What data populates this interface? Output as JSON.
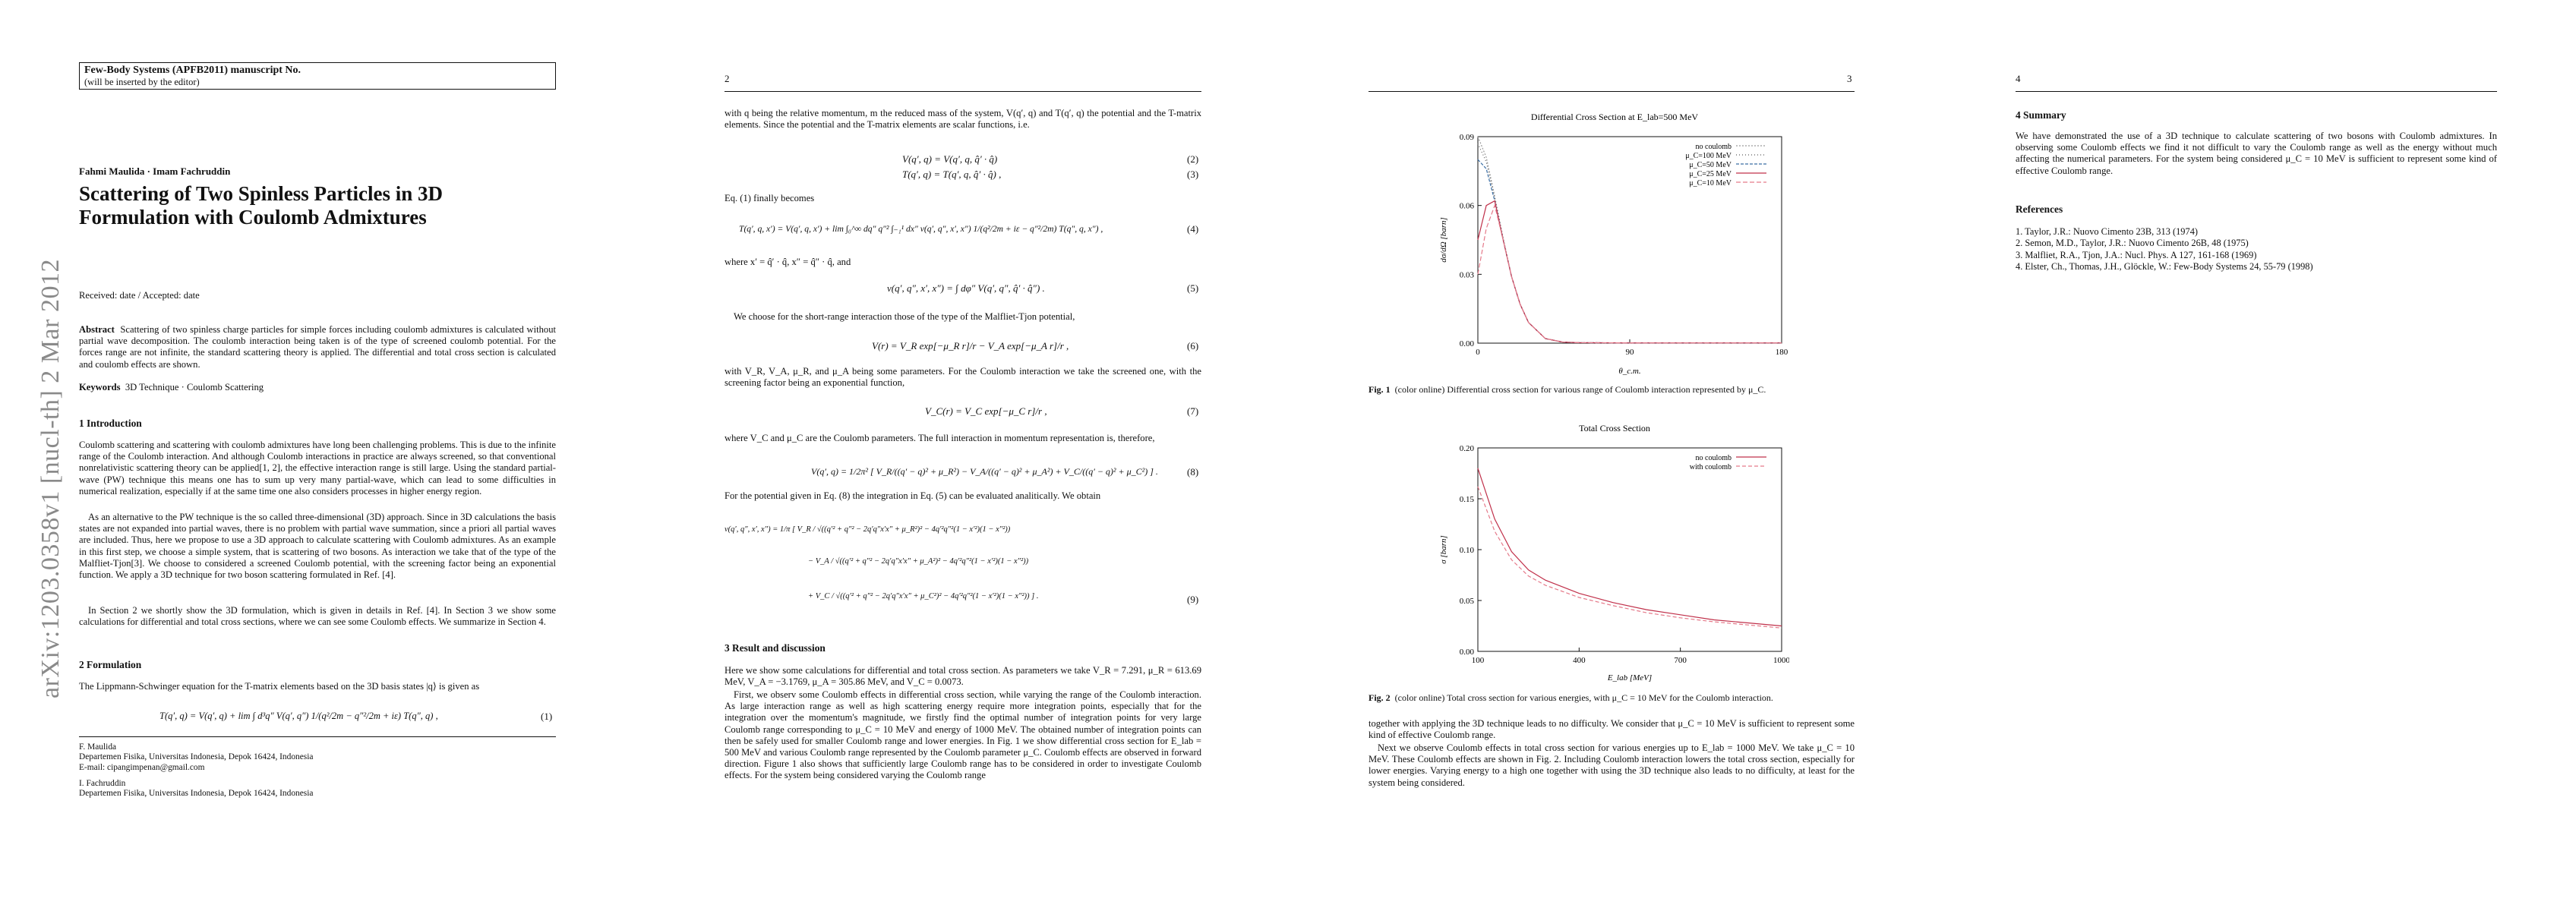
{
  "arxiv_stamp": "arXiv:1203.0358v1  [nucl-th]  2 Mar 2012",
  "page1": {
    "journal_line1": "Few-Body Systems (APFB2011) manuscript No.",
    "journal_line2": "(will be inserted by the editor)",
    "authors": "Fahmi Maulida · Imam Fachruddin",
    "title": "Scattering of Two Spinless Particles in 3D Formulation with Coulomb Admixtures",
    "received": "Received: date / Accepted: date",
    "abstract_label": "Abstract",
    "abstract": "Scattering of two spinless charge particles for simple forces including coulomb admixtures is calculated without partial wave decomposition. The coulomb interaction being taken is of the type of screened coulomb potential. For the forces range are not infinite, the standard scattering theory is applied. The differential and total cross section is calculated and coulomb effects are shown.",
    "keywords_label": "Keywords",
    "keywords": "3D Technique · Coulomb Scattering",
    "sec1_title": "1 Introduction",
    "sec1_p1": "Coulomb scattering and scattering with coulomb admixtures have long been challenging problems. This is due to the infinite range of the Coulomb interaction. And although Coulomb interactions in practice are always screened, so that conventional nonrelativistic scattering theory can be applied[1, 2], the effective interaction range is still large. Using the standard partial-wave (PW) technique this means one has to sum up very many partial-wave, which can lead to some difficulties in numerical realization, especially if at the same time one also considers processes in higher energy region.",
    "sec1_p2": "As an alternative to the PW technique is the so called three-dimensional (3D) approach. Since in 3D calculations the basis states are not expanded into partial waves, there is no problem with partial wave summation, since a priori all partial waves are included. Thus, here we propose to use a 3D approach to calculate scattering with Coulomb admixtures. As an example in this first step, we choose a simple system, that is scattering of two bosons. As interaction we take that of the type of the Malfliet-Tjon[3]. We choose to considered a screened Coulomb potential, with the screening factor being an exponential function. We apply a 3D technique for two boson scattering formulated in Ref. [4].",
    "sec1_p3": "In Section 2 we shortly show the 3D formulation, which is given in details in Ref. [4]. In Section 3 we show some calculations for differential and total cross sections, where we can see some Coulomb effects. We summarize in Section 4.",
    "sec2_title": "2 Formulation",
    "sec2_p1": "The Lippmann-Schwinger equation for the T-matrix elements based on the 3D basis states |q⟩ is given as",
    "eq1": "T(q′, q) = V(q′, q) + lim  ∫ d³q″ V(q′, q″)  1/(q²/2m − q″²/2m + iε)  T(q″, q) ,",
    "eq1_num": "(1)",
    "fn1_name": "F. Maulida",
    "fn1_aff": "Departemen Fisika, Universitas Indonesia, Depok 16424, Indonesia",
    "fn1_email": "E-mail: cipangimpenan@gmail.com",
    "fn2_name": "I. Fachruddin",
    "fn2_aff": "Departemen Fisika, Universitas Indonesia, Depok 16424, Indonesia"
  },
  "page2": {
    "page_number": "2",
    "p1": "with q being the relative momentum, m the reduced mass of the system, V(q′, q) and T(q′, q) the potential and the T-matrix elements. Since the potential and the T-matrix elements are scalar functions, i.e.",
    "eq2": "V(q′, q) = V(q′, q, q̂′ · q̂)",
    "eq2_num": "(2)",
    "eq3": "T(q′, q) = T(q′, q, q̂′ · q̂) ,",
    "eq3_num": "(3)",
    "p2": "Eq. (1) finally becomes",
    "eq4": "T(q′, q, x′) = V(q′, q, x′) + lim ∫₀^∞ dq″ q″² ∫₋₁¹ dx″ v(q′, q″, x′, x″)  1/(q²/2m + iε − q″²/2m)  T(q″, q, x″) ,",
    "eq4_num": "(4)",
    "p3": "where x′ = q̂′ · q̂, x″ = q̂″ · q̂, and",
    "eq5": "v(q′, q″, x′, x″) = ∫ dφ″ V(q′, q″, q̂′ · q̂″) .",
    "eq5_num": "(5)",
    "p4": "We choose for the short-range interaction those of the type of the Malfliet-Tjon potential,",
    "eq6": "V(r) = V_R exp[−μ_R r]/r − V_A exp[−μ_A r]/r ,",
    "eq6_num": "(6)",
    "p5": "with V_R, V_A, μ_R, and μ_A being some parameters. For the Coulomb interaction we take the screened one, with the screening factor being an exponential function,",
    "eq7": "V_C(r) = V_C exp[−μ_C r]/r ,",
    "eq7_num": "(7)",
    "p6": "where V_C and μ_C are the Coulomb parameters. The full interaction in momentum representation is, therefore,",
    "eq8": "V(q′, q) = 1/2π² [ V_R/((q′ − q)² + μ_R²) − V_A/((q′ − q)² + μ_A²) + V_C/((q′ − q)² + μ_C²) ] .",
    "eq8_num": "(8)",
    "p7": "For the potential given in Eq. (8) the integration in Eq. (5) can be evaluated analitically. We obtain",
    "eq9a": "v(q′, q″, x′, x″) = 1/π [ V_R / √((q′² + q″² − 2q′q″x′x″ + μ_R²)² − 4q′²q″²(1 − x′²)(1 − x″²))",
    "eq9b": "− V_A / √((q′² + q″² − 2q′q″x′x″ + μ_A²)² − 4q′²q″²(1 − x′²)(1 − x″²))",
    "eq9c": "+ V_C / √((q′² + q″² − 2q′q″x′x″ + μ_C²)² − 4q′²q″²(1 − x′²)(1 − x″²)) ] .",
    "eq9_num": "(9)",
    "sec3_title": "3 Result and discussion",
    "sec3_p1": "Here we show some calculations for differential and total cross section. As parameters we take V_R = 7.291, μ_R = 613.69 MeV, V_A = −3.1769, μ_A = 305.86 MeV, and V_C = 0.0073.",
    "sec3_p2": "First, we observ some Coulomb effects in differential cross section, while varying the range of the Coulomb interaction. As large interaction range as well as high scattering energy require more integration points, especially that for the integration over the momentum's magnitude, we firstly find the optimal number of integration points for very large Coulomb range corresponding to μ_C = 10 MeV and energy of 1000 MeV. The obtained number of integration points can then be safely used for smaller Coulomb range and lower energies. In Fig. 1 we show differential cross section for E_lab = 500 MeV and various Coulomb range represented by the Coulomb parameter μ_C. Coulomb effects are observed in forward direction. Figure 1 also shows that sufficiently large Coulomb range has to be considered in order to investigate Coulomb effects. For the system being considered varying the Coulomb range"
  },
  "page3": {
    "page_number": "3",
    "fig1_caption_label": "Fig. 1",
    "fig1_caption": "(color online) Differential cross section for various range of Coulomb interaction represented by μ_C.",
    "fig2_caption_label": "Fig. 2",
    "fig2_caption": "(color online) Total cross section for various energies, with μ_C = 10 MeV for the Coulomb interaction.",
    "p1": "together with applying the 3D technique leads to no difficulty. We consider that μ_C = 10 MeV is sufficient to represent some kind of effective Coulomb range.",
    "p2": "Next we observe Coulomb effects in total cross section for various energies up to E_lab = 1000 MeV. We take μ_C = 10 MeV. These Coulomb effects are shown in Fig. 2. Including Coulomb interaction lowers the total cross section, especially for lower energies. Varying energy to a high one together with using the 3D technique also leads to no difficulty, at least for the system being considered."
  },
  "page4": {
    "page_number": "4",
    "sec4_title": "4 Summary",
    "sec4_p1": "We have demonstrated the use of a 3D technique to calculate scattering of two bosons with Coulomb admixtures. In observing some Coulomb effects we find it not difficult to vary the Coulomb range as well as the energy without much affecting the numerical parameters. For the system being considered μ_C = 10 MeV is sufficient to represent some kind of effective Coulomb range.",
    "refs_title": "References",
    "refs": [
      "1. Taylor, J.R.: Nuovo Cimento 23B, 313 (1974)",
      "2. Semon, M.D., Taylor, J.R.: Nuovo Cimento 26B, 48 (1975)",
      "3. Malfliet, R.A., Tjon, J.A.: Nucl. Phys. A 127, 161-168 (1969)",
      "4. Elster, Ch., Thomas, J.H., Glöckle, W.: Few-Body Systems 24, 55-79 (1998)"
    ]
  },
  "chart_data": [
    {
      "type": "line",
      "title": "Differential Cross Section at E_lab=500 MeV",
      "xlabel": "θ_c.m.",
      "ylabel": "dσ/dΩ [barn]",
      "xlim": [
        0,
        180
      ],
      "ylim": [
        0,
        0.09
      ],
      "xticks": [
        0,
        90,
        180
      ],
      "yticks": [
        0.0,
        0.03,
        0.06,
        0.09
      ],
      "legend_position": "top-right",
      "x": [
        0,
        5,
        10,
        15,
        20,
        25,
        30,
        40,
        50,
        60,
        90,
        120,
        150,
        180
      ],
      "series": [
        {
          "name": "no coulomb",
          "color": "#9a9a9a",
          "dash": "2,2",
          "values": [
            0.09,
            0.081,
            0.064,
            0.046,
            0.029,
            0.017,
            0.009,
            0.002,
            0.0005,
            0.0002,
            0.0001,
            0.0001,
            0.0001,
            0.0001
          ]
        },
        {
          "name": "μ_C=100 MeV",
          "color": "#5a5a5a",
          "dash": "1,3",
          "values": [
            0.087,
            0.079,
            0.063,
            0.045,
            0.029,
            0.017,
            0.009,
            0.002,
            0.0005,
            0.0002,
            0.0001,
            0.0001,
            0.0001,
            0.0001
          ]
        },
        {
          "name": "μ_C=50 MeV",
          "color": "#3a6ea5",
          "dash": "4,2",
          "values": [
            0.08,
            0.076,
            0.062,
            0.045,
            0.029,
            0.017,
            0.009,
            0.002,
            0.0005,
            0.0002,
            0.0001,
            0.0001,
            0.0001,
            0.0001
          ]
        },
        {
          "name": "μ_C=25 MeV",
          "color": "#c0304a",
          "dash": "",
          "values": [
            0.045,
            0.06,
            0.062,
            0.045,
            0.029,
            0.017,
            0.009,
            0.002,
            0.0005,
            0.0002,
            0.0001,
            0.0001,
            0.0001,
            0.0001
          ]
        },
        {
          "name": "μ_C=10 MeV",
          "color": "#e57a8a",
          "dash": "6,3",
          "values": [
            0.03,
            0.05,
            0.06,
            0.045,
            0.029,
            0.017,
            0.009,
            0.002,
            0.0005,
            0.0002,
            0.0001,
            0.0001,
            0.0001,
            0.0001
          ]
        }
      ]
    },
    {
      "type": "line",
      "title": "Total Cross Section",
      "xlabel": "E_lab [MeV]",
      "ylabel": "σ [barn]",
      "xlim": [
        100,
        1000
      ],
      "ylim": [
        0,
        0.2
      ],
      "xticks": [
        100,
        400,
        700,
        1000
      ],
      "yticks": [
        0.0,
        0.05,
        0.1,
        0.15,
        0.2
      ],
      "legend_position": "top-right",
      "x": [
        100,
        150,
        200,
        250,
        300,
        400,
        500,
        600,
        700,
        800,
        900,
        1000
      ],
      "series": [
        {
          "name": "no coulomb",
          "color": "#c0304a",
          "dash": "",
          "values": [
            0.18,
            0.13,
            0.098,
            0.08,
            0.07,
            0.057,
            0.048,
            0.041,
            0.036,
            0.031,
            0.028,
            0.025
          ]
        },
        {
          "name": "with coulomb",
          "color": "#e57a8a",
          "dash": "5,3",
          "values": [
            0.162,
            0.118,
            0.09,
            0.074,
            0.065,
            0.053,
            0.045,
            0.038,
            0.033,
            0.029,
            0.026,
            0.023
          ]
        }
      ]
    }
  ]
}
